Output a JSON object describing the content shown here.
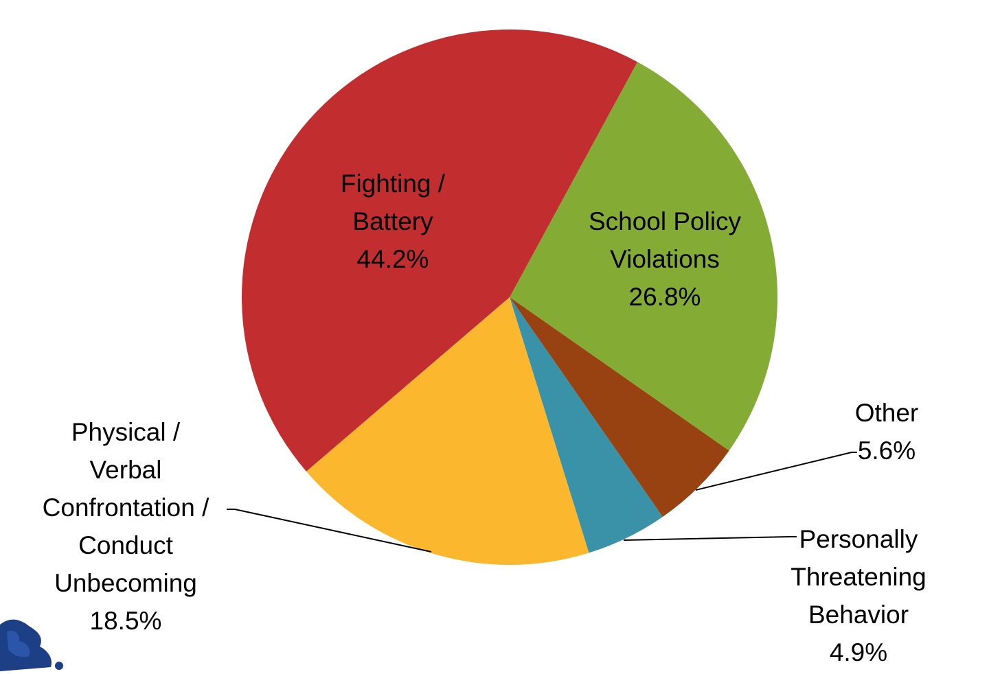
{
  "chart_data": {
    "type": "pie",
    "title": "",
    "slices": [
      {
        "label_lines": [
          "School Policy",
          "Violations"
        ],
        "value_label": "26.8%",
        "value": 26.8,
        "color": "#84AC35"
      },
      {
        "label_lines": [
          "Other"
        ],
        "value_label": "5.6%",
        "value": 5.6,
        "color": "#974210"
      },
      {
        "label_lines": [
          "Personally",
          "Threatening",
          "Behavior"
        ],
        "value_label": "4.9%",
        "value": 4.9,
        "color": "#3A92A9"
      },
      {
        "label_lines": [
          "Physical /",
          "Verbal",
          "Confrontation /",
          "Conduct",
          "Unbecoming"
        ],
        "value_label": "18.5%",
        "value": 18.5,
        "color": "#FBB72E"
      },
      {
        "label_lines": [
          "Fighting /",
          "Battery"
        ],
        "value_label": "44.2%",
        "value": 44.2,
        "color": "#C22D30"
      }
    ],
    "legend": "none"
  }
}
